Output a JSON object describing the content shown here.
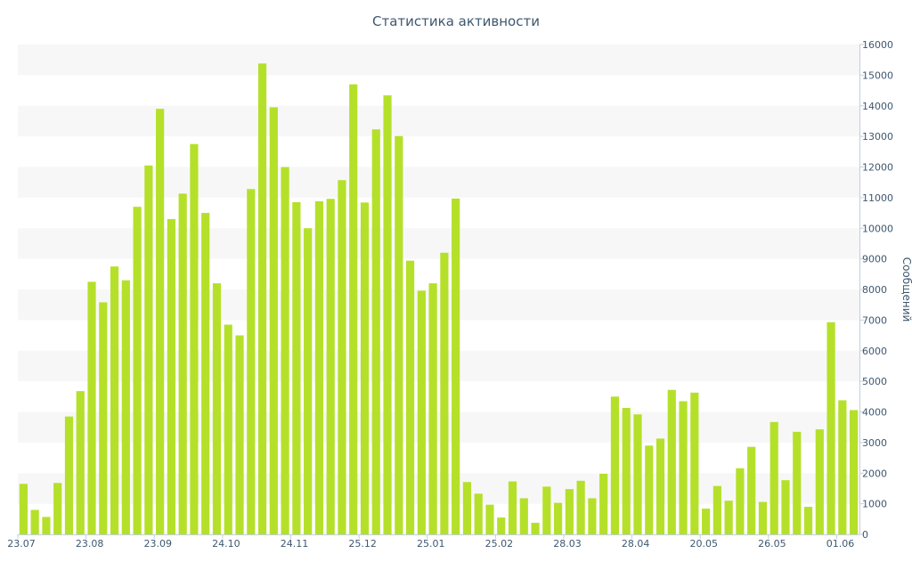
{
  "chart_data": {
    "type": "bar",
    "title": "Статистика активности",
    "xlabel": "",
    "ylabel": "Сообщений",
    "y_axis_side": "right",
    "ylim": [
      0,
      16000
    ],
    "y_ticks": [
      0,
      1000,
      2000,
      3000,
      4000,
      5000,
      6000,
      7000,
      8000,
      9000,
      10000,
      11000,
      12000,
      13000,
      14000,
      15000,
      16000
    ],
    "grid": "alternating horizontal bands",
    "x_tick_labels": [
      "23.07",
      "23.08",
      "23.09",
      "24.10",
      "24.11",
      "25.12",
      "25.01",
      "25.02",
      "28.03",
      "28.04",
      "20.05",
      "26.05",
      "01.06"
    ],
    "x_tick_bar_index": [
      0,
      6,
      12,
      18,
      24,
      30,
      36,
      42,
      48,
      54,
      60,
      66,
      72
    ],
    "values": [
      1650,
      800,
      570,
      1680,
      3850,
      4680,
      8250,
      7580,
      8750,
      8300,
      10700,
      12050,
      13900,
      10300,
      11130,
      12750,
      10500,
      8200,
      6850,
      6500,
      11280,
      15380,
      13950,
      12000,
      10850,
      10000,
      10880,
      10960,
      11570,
      14700,
      10840,
      13230,
      14340,
      13010,
      8940,
      7960,
      8200,
      9200,
      10970,
      1710,
      1330,
      970,
      550,
      1730,
      1180,
      380,
      1560,
      1030,
      1480,
      1750,
      1180,
      1980,
      4500,
      4130,
      3920,
      2900,
      3130,
      4720,
      4350,
      4630,
      840,
      1580,
      1100,
      2160,
      2860,
      1060,
      3670,
      1770,
      3350,
      900,
      3430,
      6930,
      4380,
      4060
    ],
    "bar_color": "#b5e02a",
    "band_color": "#f7f7f7",
    "axis_color": "#c0d0e0",
    "text_color": "#3e576f"
  }
}
